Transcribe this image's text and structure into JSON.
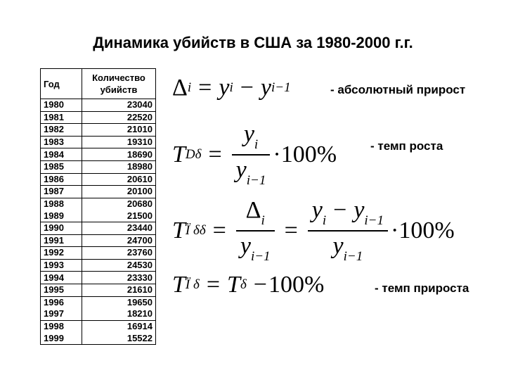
{
  "title": "Динамика убийств в США за 1980-2000 г.г.",
  "table": {
    "headers": [
      "Год",
      "Количество убийств"
    ],
    "rows": [
      [
        "1980",
        "23040"
      ],
      [
        "1981",
        "22520"
      ],
      [
        "1982",
        "21010"
      ],
      [
        "1983",
        "19310"
      ],
      [
        "1984",
        "18690"
      ],
      [
        "1985",
        "18980"
      ],
      [
        "1986",
        "20610"
      ],
      [
        "1987",
        "20100"
      ],
      [
        "1988",
        "20680"
      ],
      [
        "1989",
        "21500"
      ],
      [
        "1990",
        "23440"
      ],
      [
        "1991",
        "24700"
      ],
      [
        "1992",
        "23760"
      ],
      [
        "1993",
        "24530"
      ],
      [
        "1994",
        "23330"
      ],
      [
        "1995",
        "21610"
      ],
      [
        "1996",
        "19650"
      ],
      [
        "1997",
        "18210"
      ],
      [
        "1998",
        "16914"
      ],
      [
        "1999",
        "15522"
      ]
    ]
  },
  "formulas": {
    "delta": "Δ",
    "y": "y",
    "T": "T",
    "i": "i",
    "i1": "i−1",
    "eq": "=",
    "minus": "−",
    "dot": "·",
    "hundred": "100%",
    "sub_growth": "Dδ",
    "sub_incr": "Ï δδ",
    "sub_incr2": "Ï δ",
    "sub_t": "δ"
  },
  "labels": {
    "absolute": "- абсолютный прирост",
    "growth_rate": "- темп роста",
    "increment_rate": "- темп прироста"
  }
}
